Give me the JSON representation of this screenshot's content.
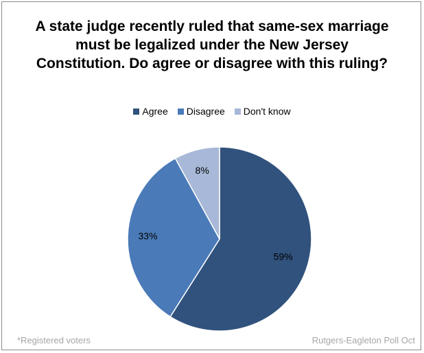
{
  "chart_data": {
    "type": "pie",
    "title": "A state judge recently ruled that same-sex marriage must be legalized under the New Jersey Constitution. Do agree or disagree with this ruling?",
    "categories": [
      "Agree",
      "Disagree",
      "Don't know"
    ],
    "values": [
      59,
      33,
      8
    ],
    "labels": [
      "59%",
      "33%",
      "8%"
    ],
    "colors": [
      "#30527d",
      "#4a7ab8",
      "#a7b8d8"
    ],
    "legend_position": "top"
  },
  "footnote": "*Registered voters",
  "source": "Rutgers-Eagleton Poll Oct"
}
